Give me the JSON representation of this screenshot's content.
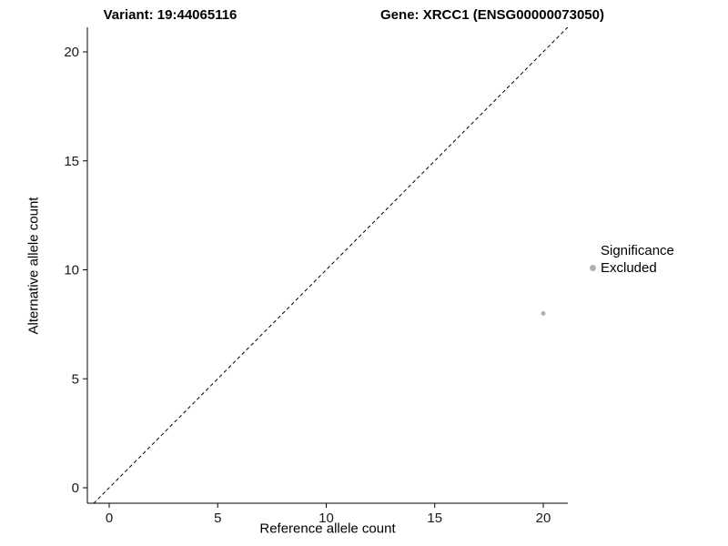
{
  "chart_data": {
    "type": "scatter",
    "title_left": "Variant: 19:44065116",
    "title_right": "Gene: XRCC1 (ENSG00000073050)",
    "xlabel": "Reference allele count",
    "ylabel": "Alternative allele count",
    "xlim": [
      0,
      20
    ],
    "ylim": [
      0,
      20
    ],
    "xticks": [
      0,
      5,
      10,
      15,
      20
    ],
    "yticks": [
      0,
      5,
      10,
      15,
      20
    ],
    "grid": false,
    "background_color": "#ffffff",
    "axis_color": "#000000",
    "identity_line": {
      "slope": 1,
      "intercept": 0,
      "style": "dashed",
      "color": "#000000"
    },
    "series": [
      {
        "name": "Excluded",
        "color": "#b0b0b0",
        "point_radius": 2.5,
        "points": [
          [
            20,
            8
          ]
        ]
      }
    ],
    "legend": {
      "position": "right",
      "title": "Significance",
      "items": [
        {
          "label": "Excluded",
          "color": "#b0b0b0"
        }
      ]
    }
  }
}
